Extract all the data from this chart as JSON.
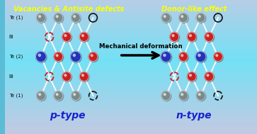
{
  "bg_color": "#5bbcd6",
  "title_left": "Vacancies & Antisite defects",
  "title_right": "Donor-like effect",
  "label_left": "p-type",
  "label_right": "n-type",
  "arrow_text": "Mechanical deformation",
  "row_labels": [
    "Te (1)",
    "Bi",
    "Te (2)",
    "Bi",
    "Te (1)"
  ],
  "te_color": "#7a8a8a",
  "bi_red_color": "#cc2020",
  "bi_blue_color": "#2233bb",
  "bond_color": "#ffffff",
  "yellow_color": "#ffff00",
  "blue_label_color": "#1a22cc",
  "row_label_color": "#111111",
  "figsize": [
    3.63,
    1.89
  ],
  "dpi": 100
}
